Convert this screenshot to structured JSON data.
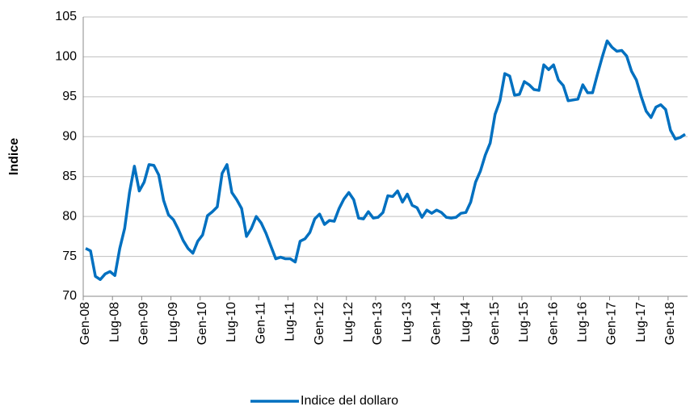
{
  "chart_data": {
    "type": "line",
    "y_label": "Indice",
    "categories": [
      "Gen-08",
      null,
      null,
      null,
      null,
      null,
      "Lug-08",
      null,
      null,
      null,
      null,
      null,
      "Gen-09",
      null,
      null,
      null,
      null,
      null,
      "Lug-09",
      null,
      null,
      null,
      null,
      null,
      "Gen-10",
      null,
      null,
      null,
      null,
      null,
      "Lug-10",
      null,
      null,
      null,
      null,
      null,
      "Gen-11",
      null,
      null,
      null,
      null,
      null,
      "Lug-11",
      null,
      null,
      null,
      null,
      null,
      "Gen-12",
      null,
      null,
      null,
      null,
      null,
      "Lug-12",
      null,
      null,
      null,
      null,
      null,
      "Gen-13",
      null,
      null,
      null,
      null,
      null,
      "Lug-13",
      null,
      null,
      null,
      null,
      null,
      "Gen-14",
      null,
      null,
      null,
      null,
      null,
      "Lug-14",
      null,
      null,
      null,
      null,
      null,
      "Gen-15",
      null,
      null,
      null,
      null,
      null,
      "Lug-15",
      null,
      null,
      null,
      null,
      null,
      "Gen-16",
      null,
      null,
      null,
      null,
      null,
      "Lug-16",
      null,
      null,
      null,
      null,
      null,
      "Gen-17",
      null,
      null,
      null,
      null,
      null,
      "Lug-17",
      null,
      null,
      null,
      null,
      null,
      "Gen-18",
      null,
      null,
      null
    ],
    "series": [
      {
        "name": "Indice del dollaro",
        "color": "#0070c0",
        "values": [
          76,
          75.7,
          72.5,
          72.1,
          72.8,
          73.1,
          72.6,
          76,
          78.5,
          83,
          86.3,
          83.2,
          84.3,
          86.5,
          86.4,
          85.2,
          82,
          80.2,
          79.6,
          78.4,
          77,
          76,
          75.4,
          76.9,
          77.7,
          80.1,
          80.6,
          81.2,
          85.4,
          86.5,
          83,
          82.1,
          81,
          77.5,
          78.5,
          80,
          79.2,
          77.9,
          76.3,
          74.7,
          74.9,
          74.7,
          74.7,
          74.3,
          76.9,
          77.2,
          78,
          79.7,
          80.3,
          79,
          79.5,
          79.4,
          81,
          82.2,
          83,
          82.1,
          79.8,
          79.7,
          80.6,
          79.8,
          79.9,
          80.5,
          82.6,
          82.5,
          83.2,
          81.8,
          82.8,
          81.4,
          81.1,
          79.9,
          80.8,
          80.4,
          80.8,
          80.5,
          79.9,
          79.8,
          79.9,
          80.4,
          80.5,
          81.8,
          84.3,
          85.7,
          87.7,
          89.2,
          92.8,
          94.5,
          97.9,
          97.6,
          95.2,
          95.3,
          96.9,
          96.5,
          95.9,
          95.8,
          99,
          98.4,
          99,
          97.1,
          96.4,
          94.5,
          94.6,
          94.7,
          96.5,
          95.5,
          95.5,
          97.8,
          100,
          102,
          101.2,
          100.7,
          100.8,
          100.1,
          98.2,
          97.1,
          95,
          93.2,
          92.4,
          93.7,
          94,
          93.4,
          90.8,
          89.7,
          89.9,
          90.3
        ]
      }
    ],
    "ylim": [
      70,
      105
    ],
    "yticks": [
      70,
      75,
      80,
      85,
      90,
      95,
      100,
      105
    ],
    "grid": true,
    "legend": "bottom"
  }
}
